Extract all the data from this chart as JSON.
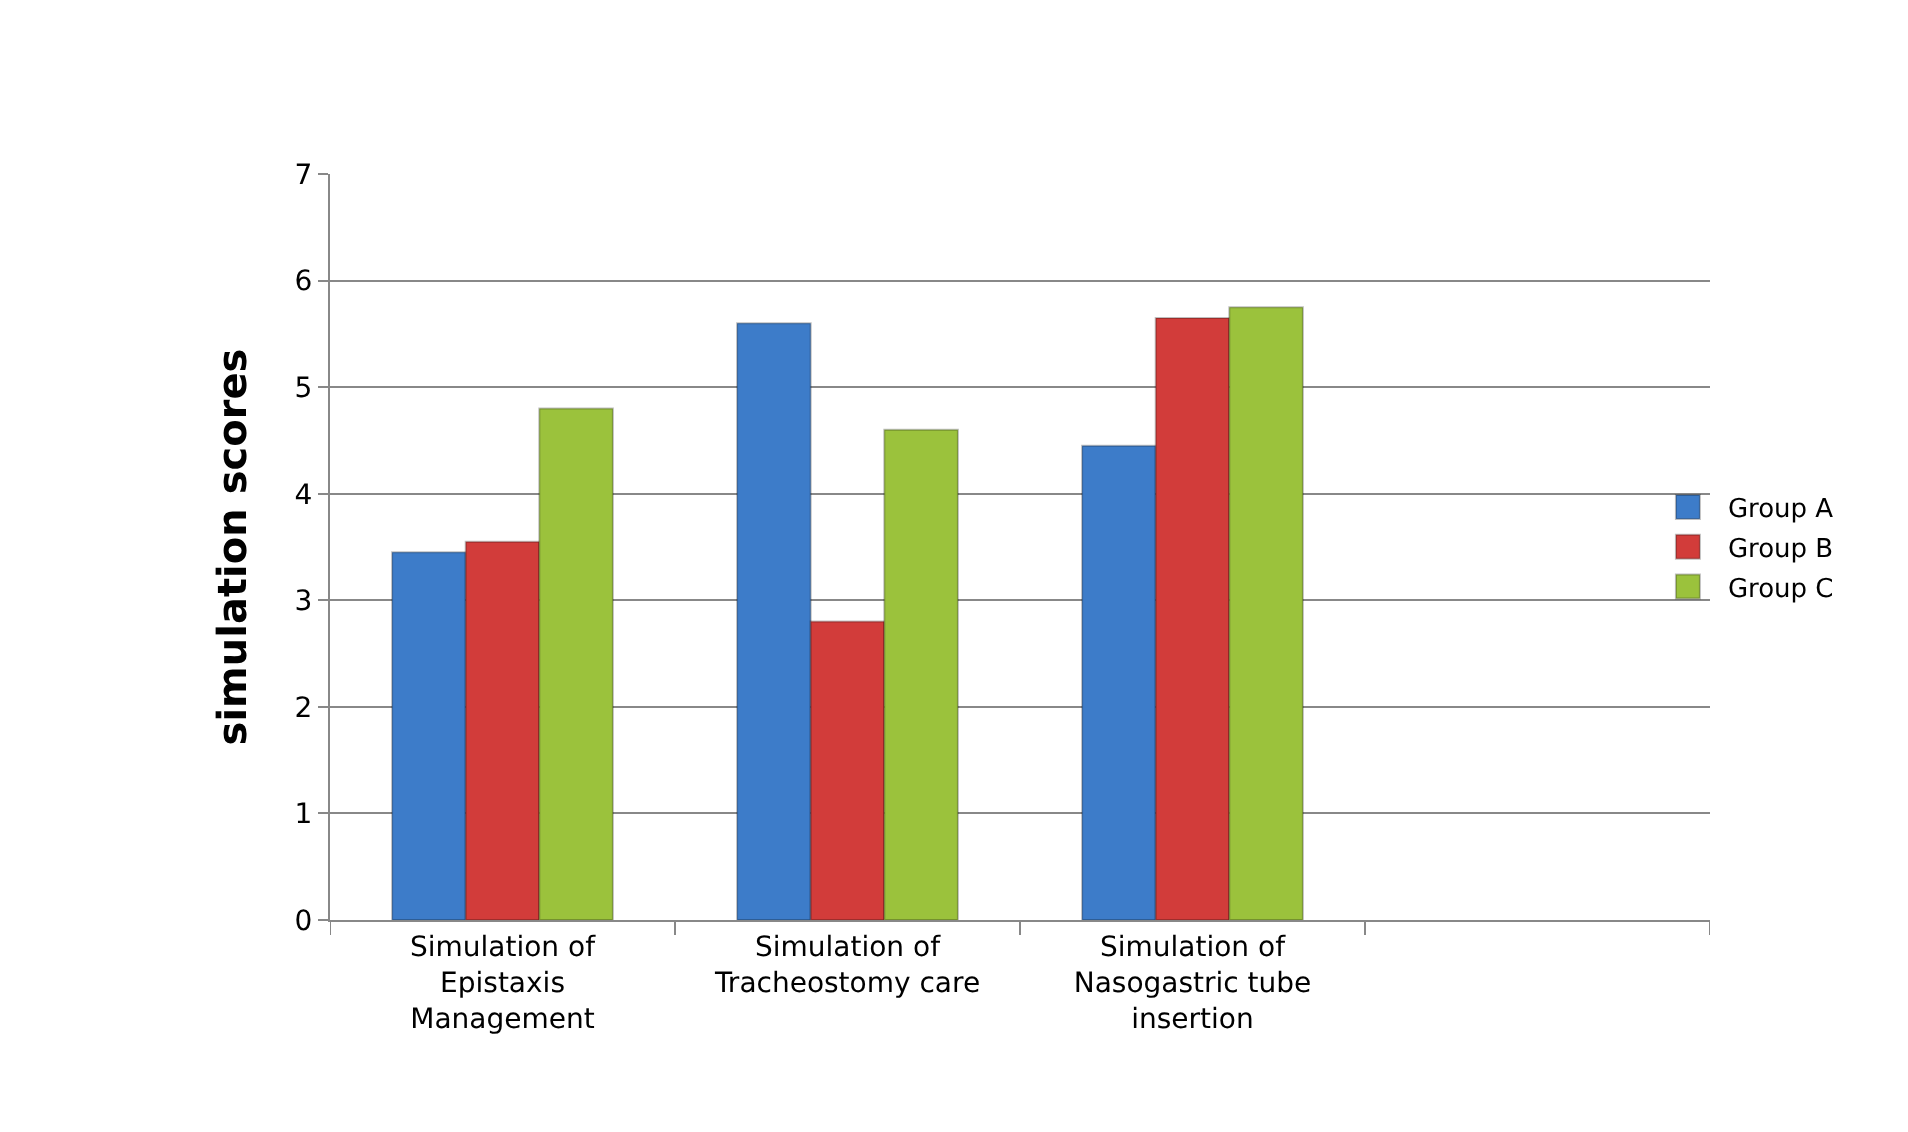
{
  "chart_data": {
    "type": "bar",
    "ylabel": "simulation scores",
    "categories": [
      "Simulation of Epistaxis Management",
      "Simulation of Tracheostomy care",
      "Simulation of Nasogastric tube insertion",
      null
    ],
    "series": [
      {
        "name": "Group A",
        "color": "#3d7cc9",
        "values": [
          3.45,
          5.6,
          4.45,
          null
        ]
      },
      {
        "name": "Group B",
        "color": "#d23c3a",
        "values": [
          3.55,
          2.8,
          5.65,
          null
        ]
      },
      {
        "name": "Group C",
        "color": "#9bc23c",
        "values": [
          4.8,
          4.6,
          5.75,
          null
        ]
      }
    ],
    "ylim": [
      0,
      7
    ],
    "yticks": [
      0,
      1,
      2,
      3,
      4,
      5,
      6,
      7
    ],
    "grid": "y",
    "legend": "right"
  }
}
